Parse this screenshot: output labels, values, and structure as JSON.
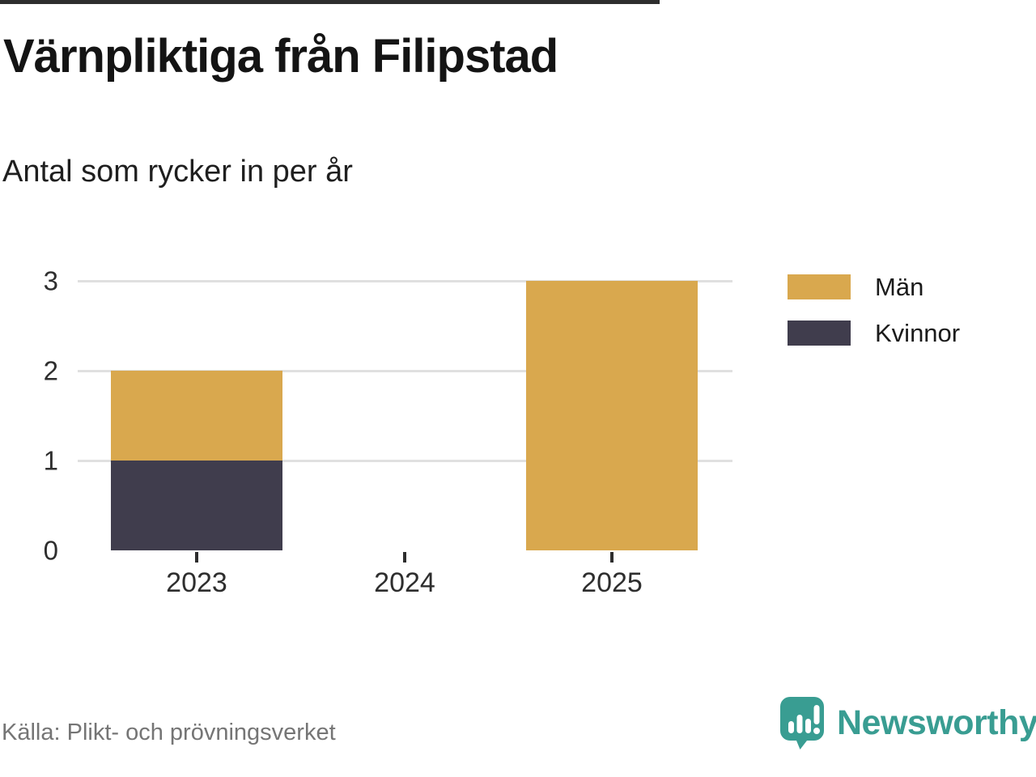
{
  "title": "Värnpliktiga från Filipstad",
  "subtitle": "Antal som rycker in per år",
  "source": "Källa: Plikt- och prövningsverket",
  "branding": {
    "name": "Newsworthy",
    "logo_icon": "speech-bubble-bar-chart-icon",
    "color": "#399d92"
  },
  "colors": {
    "men": "#d9a84e",
    "women": "#403d4d",
    "axis": "#2e2e2e",
    "grid": "#e0e0e0",
    "muted_text": "#757575"
  },
  "chart_data": {
    "type": "bar",
    "stacked": true,
    "title": "Värnpliktiga från Filipstad",
    "subtitle": "Antal som rycker in per år",
    "categories": [
      "2023",
      "2024",
      "2025"
    ],
    "series": [
      {
        "name": "Män",
        "color": "#d9a84e",
        "values": [
          1,
          0,
          3
        ]
      },
      {
        "name": "Kvinnor",
        "color": "#403d4d",
        "values": [
          1,
          0,
          0
        ]
      }
    ],
    "totals_by_category": [
      2,
      0,
      3
    ],
    "xlabel": "",
    "ylabel": "",
    "ylim": [
      0,
      3
    ],
    "yticks": [
      0,
      1,
      2,
      3
    ],
    "grid": true,
    "legend_position": "right"
  }
}
